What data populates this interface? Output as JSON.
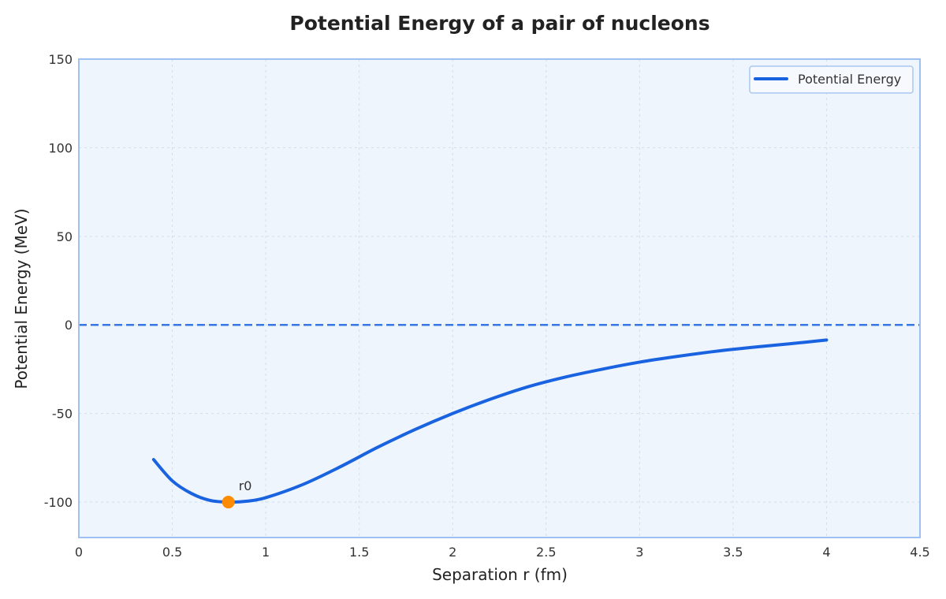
{
  "chart_data": {
    "type": "line",
    "title": "Potential Energy of a pair of nucleons",
    "xlabel": "Separation r (fm)",
    "ylabel": "Potential Energy (MeV)",
    "xlim": [
      0,
      4.5
    ],
    "ylim": [
      -120,
      150
    ],
    "xticks": [
      0,
      0.5,
      1,
      1.5,
      2,
      2.5,
      3,
      3.5,
      4,
      4.5
    ],
    "xtick_labels": [
      "0",
      "0.5",
      "1",
      "1.5",
      "2",
      "2.5",
      "3",
      "3.5",
      "4",
      "4.5"
    ],
    "yticks": [
      -100,
      -50,
      0,
      50,
      100,
      150
    ],
    "ytick_labels": [
      "-100",
      "-50",
      "0",
      "50",
      "100",
      "150"
    ],
    "grid": true,
    "legend_position": "top-right",
    "reference_line": {
      "y": 0,
      "style": "dashed"
    },
    "series": [
      {
        "name": "Potential Energy",
        "color": "#1a63e0",
        "x": [
          0.4,
          0.5,
          0.6,
          0.7,
          0.8,
          0.9,
          1.0,
          1.2,
          1.4,
          1.6,
          1.8,
          2.0,
          2.2,
          2.4,
          2.6,
          2.8,
          3.0,
          3.2,
          3.4,
          3.6,
          3.8,
          4.0
        ],
        "y": [
          -76,
          -88,
          -95,
          -99,
          -100,
          -99.5,
          -97.5,
          -90,
          -80,
          -69,
          -59,
          -50,
          -42,
          -35,
          -29.5,
          -25,
          -21,
          -17.8,
          -15,
          -12.7,
          -10.7,
          -8.5
        ]
      }
    ],
    "annotations": [
      {
        "text": "r0",
        "x": 0.8,
        "y": -100,
        "marker_color": "#ff8c00"
      }
    ]
  },
  "colors": {
    "plot_background": "#eef5fd",
    "frame": "#9ec1f2",
    "grid": "#d3deec",
    "zero_line": "#1a63e0"
  }
}
